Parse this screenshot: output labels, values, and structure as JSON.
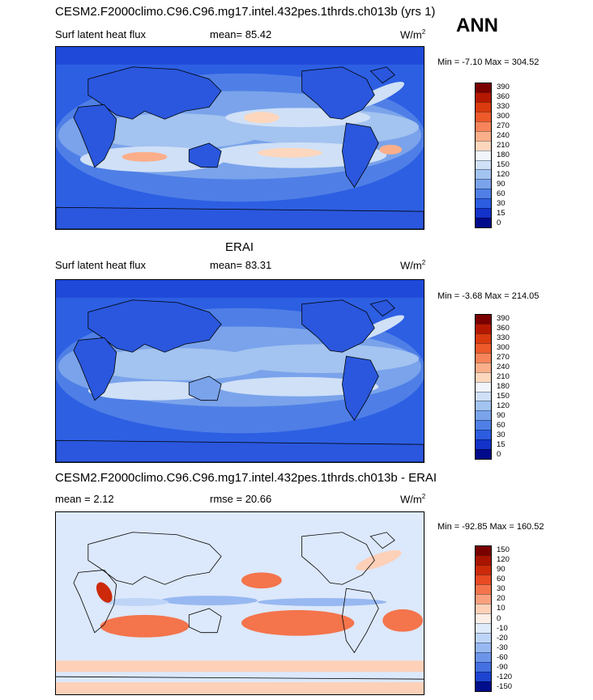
{
  "season": "ANN",
  "panels": [
    {
      "title": "CESM2.F2000climo.C96.C96.mg17.intel.432pes.1thrds.ch013b (yrs 1)",
      "field": "Surf latent heat flux",
      "stat1": "mean=  85.42",
      "stat2": "",
      "units": "W/m",
      "units_sup": "2",
      "minmax": "Min =  -7.10 Max = 304.52",
      "colorbar": {
        "levels": [
          "390",
          "360",
          "330",
          "300",
          "270",
          "240",
          "210",
          "180",
          "150",
          "120",
          "90",
          "60",
          "30",
          "15",
          "0"
        ],
        "colors": [
          "#7a0000",
          "#b51800",
          "#d93a0e",
          "#ee5a2a",
          "#f7845a",
          "#fbae8a",
          "#fdd7bd",
          "#f1f5fb",
          "#cfe0f7",
          "#a3c3f0",
          "#7aa3eb",
          "#4f7fe6",
          "#2c5ce0",
          "#1232c8",
          "#000a8a"
        ]
      }
    },
    {
      "title": "ERAI",
      "field": "Surf latent heat flux",
      "stat1": "mean=  83.31",
      "stat2": "",
      "units": "W/m",
      "units_sup": "2",
      "minmax": "Min =  -3.68 Max = 214.05",
      "colorbar": {
        "levels": [
          "390",
          "360",
          "330",
          "300",
          "270",
          "240",
          "210",
          "180",
          "150",
          "120",
          "90",
          "60",
          "30",
          "15",
          "0"
        ],
        "colors": [
          "#7a0000",
          "#b51800",
          "#d93a0e",
          "#ee5a2a",
          "#f7845a",
          "#fbae8a",
          "#fdd7bd",
          "#f1f5fb",
          "#cfe0f7",
          "#a3c3f0",
          "#7aa3eb",
          "#4f7fe6",
          "#2c5ce0",
          "#1232c8",
          "#000a8a"
        ]
      }
    },
    {
      "title": "CESM2.F2000climo.C96.C96.mg17.intel.432pes.1thrds.ch013b - ERAI",
      "field": "",
      "stat1": "mean =   2.12",
      "stat2": "rmse =  20.66",
      "units": "W/m",
      "units_sup": "2",
      "minmax": "Min = -92.85 Max = 160.52",
      "colorbar": {
        "levels": [
          "150",
          "120",
          "90",
          "60",
          "30",
          "20",
          "10",
          "0",
          "-10",
          "-20",
          "-30",
          "-60",
          "-90",
          "-120",
          "-150"
        ],
        "colors": [
          "#7a0000",
          "#a81400",
          "#cc2a0a",
          "#e84a22",
          "#f4744c",
          "#f9a07e",
          "#fdd0b8",
          "#fbeee6",
          "#dfeafb",
          "#bfd5f7",
          "#97b8f1",
          "#6c95ea",
          "#4470e2",
          "#1d44d0",
          "#000e8c"
        ]
      }
    }
  ],
  "colors": {
    "ocean_base": "#2d5fe3",
    "land_base": "#2750d6",
    "diff_base": "#dce8fb"
  }
}
